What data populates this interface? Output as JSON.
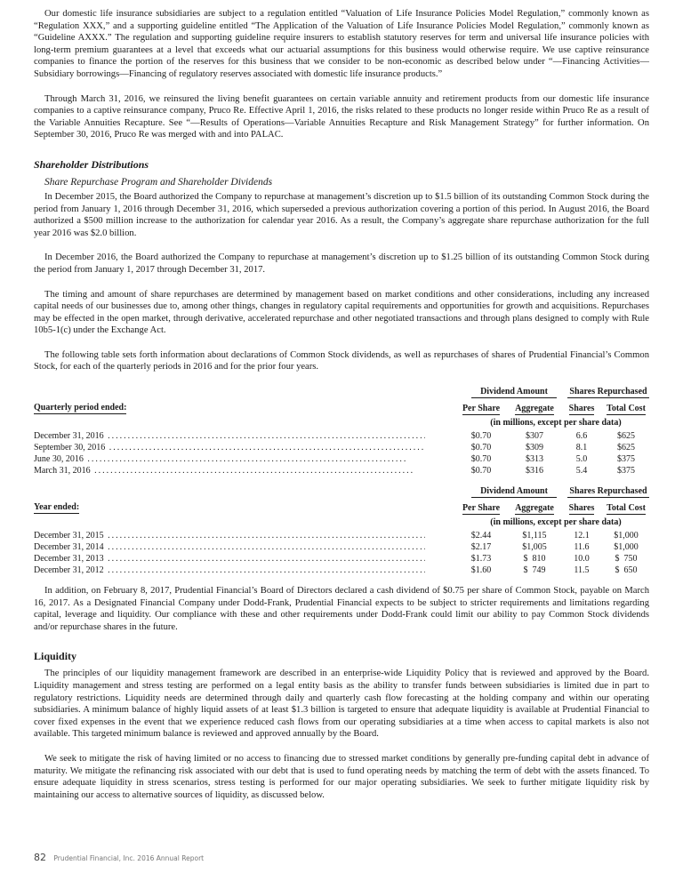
{
  "paragraphs_top": [
    "Our domestic life insurance subsidiaries are subject to a regulation entitled “Valuation of Life Insurance Policies Model Regulation,” commonly known as “Regulation XXX,” and a supporting guideline entitled “The Application of the Valuation of Life Insurance Policies Model Regulation,” commonly known as “Guideline AXXX.” The regulation and supporting guideline require insurers to establish statutory reserves for term and universal life insurance policies with long-term premium guarantees at a level that exceeds what our actuarial assumptions for this business would otherwise require. We use captive reinsurance companies to finance the portion of the reserves for this business that we consider to be non-economic as described below under “—Financing Activities—Subsidiary borrowings—Financing of regulatory reserves associated with domestic life insurance products.”",
    "Through March 31, 2016, we reinsured the living benefit guarantees on certain variable annuity and retirement products from our domestic life insurance companies to a captive reinsurance company, Pruco Re. Effective April 1, 2016, the risks related to these products no longer reside within Pruco Re as a result of the Variable Annuities Recapture. See “—Results of Operations—Variable Annuities Recapture and Risk Management Strategy” for further information. On September 30, 2016, Pruco Re was merged with and into PALAC."
  ],
  "section1": {
    "title": "Shareholder Distributions",
    "subtitle": "Share Repurchase Program and Shareholder Dividends",
    "paragraphs": [
      "In December 2015, the Board authorized the Company to repurchase at management’s discretion up to $1.5 billion of its outstanding Common Stock during the period from January 1, 2016 through December 31, 2016, which superseded a previous authorization covering a portion of this period. In August 2016, the Board authorized a $500 million increase to the authorization for calendar year 2016. As a result, the Company’s aggregate share repurchase authorization for the full year 2016 was $2.0 billion.",
      "In December 2016, the Board authorized the Company to repurchase at management’s discretion up to $1.25 billion of its outstanding Common Stock during the period from January 1, 2017 through December 31, 2017.",
      "The timing and amount of share repurchases are determined by management based on market conditions and other considerations, including any increased capital needs of our businesses due to, among other things, changes in regulatory capital requirements and opportunities for growth and acquisitions. Repurchases may be effected in the open market, through derivative, accelerated repurchase and other negotiated transactions and through plans designed to comply with Rule 10b5-1(c) under the Exchange Act.",
      "The following table sets forth information about declarations of Common Stock dividends, as well as repurchases of shares of Prudential Financial’s Common Stock, for each of the quarterly periods in 2016 and for the prior four years."
    ]
  },
  "tables": [
    {
      "period_label": "Quarterly period ended:",
      "group1": "Dividend Amount",
      "group2": "Shares Repurchased",
      "columns": [
        "Per Share",
        "Aggregate",
        "Shares",
        "Total Cost"
      ],
      "units": "(in millions, except per share data)",
      "rows": [
        [
          "December 31, 2016",
          "$0.70",
          "$307",
          "6.6",
          "$625"
        ],
        [
          "September 30, 2016",
          "$0.70",
          "$309",
          "8.1",
          "$625"
        ],
        [
          "June 30, 2016",
          "$0.70",
          "$313",
          "5.0",
          "$375"
        ],
        [
          "March 31, 2016",
          "$0.70",
          "$316",
          "5.4",
          "$375"
        ]
      ]
    },
    {
      "period_label": "Year ended:",
      "group1": "Dividend Amount",
      "group2": "Shares Repurchased",
      "columns": [
        "Per Share",
        "Aggregate",
        "Shares",
        "Total Cost"
      ],
      "units": "(in millions, except per share data)",
      "rows": [
        [
          "December 31, 2015",
          "$2.44",
          "$1,115",
          "12.1",
          "$1,000"
        ],
        [
          "December 31, 2014",
          "$2.17",
          "$1,005",
          "11.6",
          "$1,000"
        ],
        [
          "December 31, 2013",
          "$1.73",
          "$  810",
          "10.0",
          "$  750"
        ],
        [
          "December 31, 2012",
          "$1.60",
          "$  749",
          "11.5",
          "$  650"
        ]
      ]
    }
  ],
  "after_table": "In addition, on February 8, 2017, Prudential Financial’s Board of Directors declared a cash dividend of $0.75 per share of Common Stock, payable on March 16, 2017. As a Designated Financial Company under Dodd-Frank, Prudential Financial expects to be subject to stricter requirements and limitations regarding capital, leverage and liquidity. Our compliance with these and other requirements under Dodd-Frank could limit our ability to pay Common Stock dividends and/or repurchase shares in the future.",
  "section2": {
    "title": "Liquidity",
    "paragraphs": [
      "The principles of our liquidity management framework are described in an enterprise-wide Liquidity Policy that is reviewed and approved by the Board. Liquidity management and stress testing are performed on a legal entity basis as the ability to transfer funds between subsidiaries is limited due in part to regulatory restrictions. Liquidity needs are determined through daily and quarterly cash flow forecasting at the holding company and within our operating subsidiaries. A minimum balance of highly liquid assets of at least $1.3 billion is targeted to ensure that adequate liquidity is available at Prudential Financial to cover fixed expenses in the event that we experience reduced cash flows from our operating subsidiaries at a time when access to capital markets is also not available. This targeted minimum balance is reviewed and approved annually by the Board.",
      "We seek to mitigate the risk of having limited or no access to financing due to stressed market conditions by generally pre-funding capital debt in advance of maturity. We mitigate the refinancing risk associated with our debt that is used to fund operating needs by matching the term of debt with the assets financed. To ensure adequate liquidity in stress scenarios, stress testing is performed for our major operating subsidiaries. We seek to further mitigate liquidity risk by maintaining our access to alternative sources of liquidity, as discussed below."
    ]
  },
  "footer": {
    "page_number": "82",
    "text": "Prudential Financial, Inc. 2016 Annual Report"
  }
}
